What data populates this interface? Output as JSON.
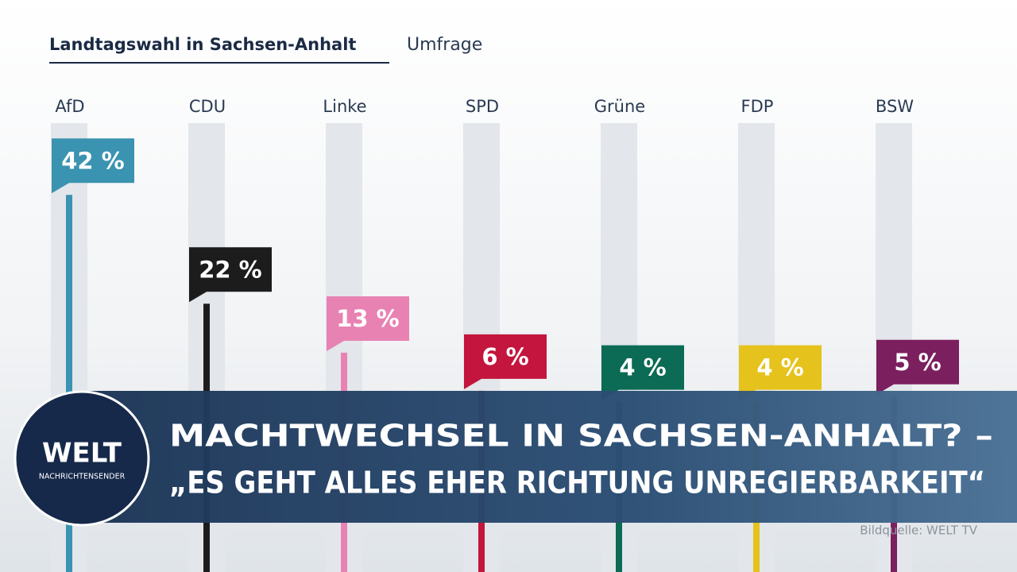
{
  "chart_data": {
    "type": "bar",
    "title": "Landtagswahl in Sachsen-Anhalt",
    "subtitle": "Umfrage",
    "categories": [
      "AfD",
      "CDU",
      "Linke",
      "SPD",
      "Grüne",
      "FDP",
      "BSW"
    ],
    "values": [
      42,
      22,
      13,
      6,
      4,
      4,
      5
    ],
    "value_labels": [
      "42 %",
      "22 %",
      "13 %",
      "6 %",
      "4 %",
      "4 %",
      "5 %"
    ],
    "colors": [
      "#3a93b0",
      "#1c1c1c",
      "#e882b3",
      "#c3153d",
      "#0b6b55",
      "#e6c21c",
      "#7b1f5e"
    ]
  },
  "banner": {
    "headline": [
      "MACHTWECHSEL IN SACHSEN-ANHALT? –",
      "„ES GEHT ALLES EHER RICHTUNG UNREGIERBARKEIT“"
    ],
    "logo": "WELT",
    "logo_sub": "NACHRICHTENSENDER",
    "credit": "Bildquelle: WELT TV"
  }
}
